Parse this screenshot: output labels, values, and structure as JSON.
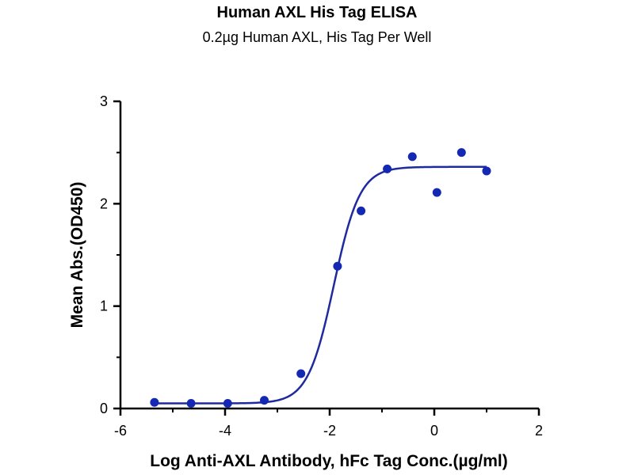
{
  "chart_data": {
    "type": "scatter",
    "title": "Human AXL His Tag ELISA",
    "subtitle": "0.2µg Human AXL, His Tag Per Well",
    "xlabel": "Log Anti-AXL Antibody, hFc Tag Conc.(µg/ml)",
    "ylabel": "Mean Abs.(OD450)",
    "xlim": [
      -6,
      2
    ],
    "ylim": [
      0,
      3
    ],
    "xticks": [
      -6,
      -4,
      -2,
      0,
      2
    ],
    "yticks": [
      0,
      1,
      2,
      3
    ],
    "grid": false,
    "legend": "none",
    "point_color": "#1428b4",
    "curve_color": "#1e2a9e",
    "series": [
      {
        "x": [
          -5.35,
          -4.65,
          -3.95,
          -3.25,
          -2.55,
          -1.85,
          -1.4,
          -0.9,
          -0.42,
          0.05,
          0.52,
          1.0
        ],
        "y": [
          0.06,
          0.05,
          0.05,
          0.08,
          0.34,
          1.39,
          1.93,
          2.34,
          2.46,
          2.11,
          2.5,
          2.32
        ]
      }
    ],
    "fit": {
      "model": "4PL",
      "bottom": 0.05,
      "top": 2.36,
      "logEC50": -1.92,
      "hill": 1.75
    }
  }
}
